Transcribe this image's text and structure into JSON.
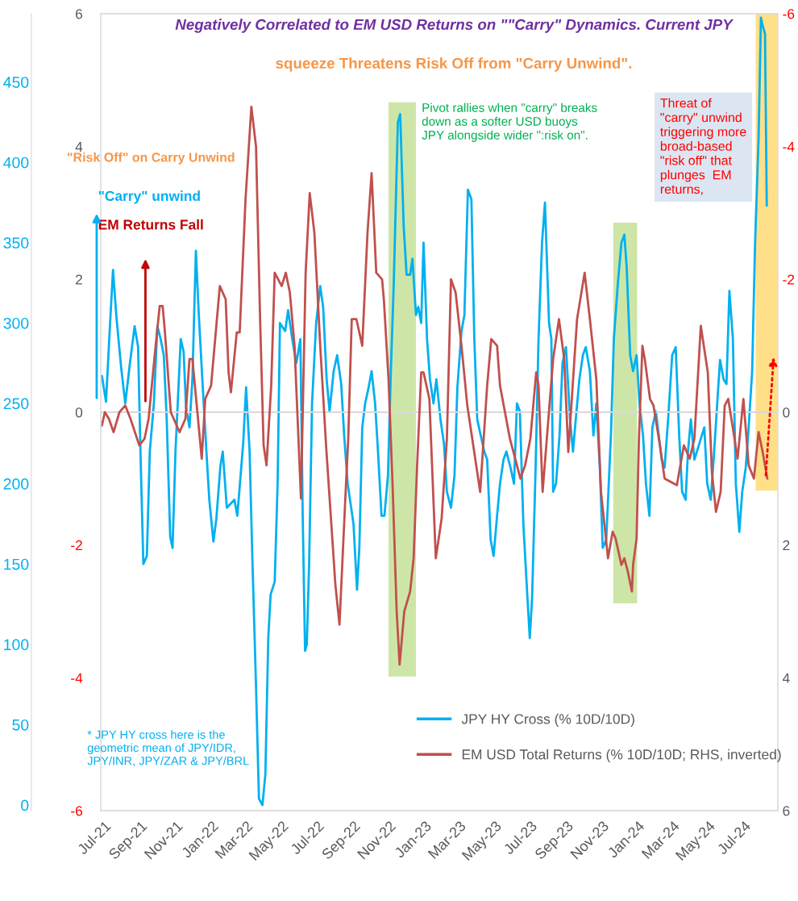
{
  "chart_data": {
    "type": "line",
    "title": "Negatively Correlated to EM USD Returns on \"\"Carry\" Dynamics. Current JPY",
    "subtitle": "squeeze Threatens Risk Off from \"Carry Unwind\".",
    "xlim": [
      "2021-06-25",
      "2024-08-28"
    ],
    "xticks": [
      {
        "value": "2021-07-01",
        "label": "Jul-21"
      },
      {
        "value": "2021-09-01",
        "label": "Sep-21"
      },
      {
        "value": "2021-11-01",
        "label": "Nov-21"
      },
      {
        "value": "2022-01-01",
        "label": "Jan-22"
      },
      {
        "value": "2022-03-01",
        "label": "Mar-22"
      },
      {
        "value": "2022-05-01",
        "label": "May-22"
      },
      {
        "value": "2022-07-01",
        "label": "Jul-22"
      },
      {
        "value": "2022-09-01",
        "label": "Sep-22"
      },
      {
        "value": "2022-11-01",
        "label": "Nov-22"
      },
      {
        "value": "2023-01-01",
        "label": "Jan-23"
      },
      {
        "value": "2023-03-01",
        "label": "Mar-23"
      },
      {
        "value": "2023-05-01",
        "label": "May-23"
      },
      {
        "value": "2023-07-01",
        "label": "Jul-23"
      },
      {
        "value": "2023-09-01",
        "label": "Sep-23"
      },
      {
        "value": "2023-11-01",
        "label": "Nov-23"
      },
      {
        "value": "2024-01-01",
        "label": "Jan-24"
      },
      {
        "value": "2024-03-01",
        "label": "Mar-24"
      },
      {
        "value": "2024-05-01",
        "label": "May-24"
      },
      {
        "value": "2024-07-01",
        "label": "Jul-24"
      }
    ],
    "ylim": [
      -3.5,
      492.5
    ],
    "yticks": [
      0,
      50,
      100,
      150,
      200,
      250,
      300,
      350,
      400,
      450
    ],
    "y2lim": [
      6,
      -6
    ],
    "y2ticks": [
      -6,
      -4,
      -2,
      0,
      2,
      4,
      6
    ],
    "y3lim": [
      -6,
      6
    ],
    "y3ticks": [
      -6,
      -4,
      -2,
      0,
      2,
      4,
      6
    ],
    "grid": false,
    "legend": "bottom right",
    "ref_lines": [
      {
        "axis": "y2",
        "value": 0,
        "color": "#d9d9d9"
      }
    ],
    "bands": [
      {
        "axis": "x",
        "from": "2022-10-31",
        "to": "2022-12-17",
        "color": "#a4d261"
      },
      {
        "axis": "x",
        "from": "2023-11-20",
        "to": "2023-12-31",
        "color": "#a4d261"
      },
      {
        "axis": "x",
        "from": "2024-07-21",
        "to": "2024-08-27",
        "color": "#ffc527"
      }
    ],
    "annotations": [
      "\"Risk Off\" on Carry Unwind",
      "\"Carry\" unwind",
      "EM Returns Fall",
      "Pivot rallies when \"carry\" breaks\ndown as a softer USD buoys\nJPY alongside wider \":risk on\".",
      "Threat of\n\"carry\" unwind\ntriggering more\nbroad-based\n\"risk off\" that\nplunges  EM\nreturns,",
      "* JPY HY cross here is the\ngeometric mean of JPY/IDR,\nJPY/INR, JPY/ZAR & JPY/BRL"
    ],
    "series": [
      {
        "name": "JPY HY Cross (% 10D/10D)",
        "color": "#00b0f0",
        "x": [
          "2021-06-27",
          "2021-07-04",
          "2021-07-11",
          "2021-07-16",
          "2021-07-22",
          "2021-07-30",
          "2021-08-06",
          "2021-08-14",
          "2021-08-22",
          "2021-08-28",
          "2021-09-01",
          "2021-09-06",
          "2021-09-12",
          "2021-09-17",
          "2021-09-24",
          "2021-09-30",
          "2021-10-05",
          "2021-10-11",
          "2021-10-16",
          "2021-10-22",
          "2021-10-26",
          "2021-10-31",
          "2021-11-09",
          "2021-11-14",
          "2021-11-18",
          "2021-11-24",
          "2021-11-29",
          "2021-12-05",
          "2021-12-10",
          "2021-12-16",
          "2021-12-23",
          "2021-12-28",
          "2022-01-04",
          "2022-01-09",
          "2022-01-16",
          "2022-01-20",
          "2022-01-27",
          "2022-02-09",
          "2022-02-14",
          "2022-02-24",
          "2022-03-01",
          "2022-03-07",
          "2022-03-12",
          "2022-03-18",
          "2022-03-23",
          "2022-03-29",
          "2022-04-03",
          "2022-04-08",
          "2022-04-12",
          "2022-04-19",
          "2022-04-24",
          "2022-04-28",
          "2022-05-07",
          "2022-05-12",
          "2022-05-19",
          "2022-05-26",
          "2022-06-02",
          "2022-06-06",
          "2022-06-10",
          "2022-06-13",
          "2022-06-17",
          "2022-06-22",
          "2022-06-29",
          "2022-07-06",
          "2022-07-11",
          "2022-07-17",
          "2022-07-22",
          "2022-07-29",
          "2022-08-04",
          "2022-08-11",
          "2022-08-16",
          "2022-08-22",
          "2022-09-01",
          "2022-09-07",
          "2022-09-11",
          "2022-09-16",
          "2022-09-21",
          "2022-09-27",
          "2022-10-02",
          "2022-10-08",
          "2022-10-13",
          "2022-10-19",
          "2022-10-24",
          "2022-10-30",
          "2022-11-04",
          "2022-11-09",
          "2022-11-16",
          "2022-11-20",
          "2022-11-26",
          "2022-12-01",
          "2022-12-07",
          "2022-12-11",
          "2022-12-17",
          "2022-12-21",
          "2022-12-26",
          "2022-12-30",
          "2023-01-05",
          "2023-01-10",
          "2023-01-16",
          "2023-01-21",
          "2023-01-28",
          "2023-02-03",
          "2023-02-08",
          "2023-02-15",
          "2023-02-21",
          "2023-02-26",
          "2023-03-05",
          "2023-03-10",
          "2023-03-16",
          "2023-03-22",
          "2023-03-27",
          "2023-04-01",
          "2023-04-13",
          "2023-04-18",
          "2023-04-24",
          "2023-04-29",
          "2023-05-05",
          "2023-05-10",
          "2023-05-16",
          "2023-05-21",
          "2023-05-28",
          "2023-06-03",
          "2023-06-08",
          "2023-06-13",
          "2023-06-19",
          "2023-06-26",
          "2023-06-30",
          "2023-07-04",
          "2023-07-10",
          "2023-07-15",
          "2023-07-21",
          "2023-07-26",
          "2023-08-02",
          "2023-08-06",
          "2023-08-09",
          "2023-08-14",
          "2023-08-20",
          "2023-08-25",
          "2023-08-31",
          "2023-09-07",
          "2023-09-12",
          "2023-09-18",
          "2023-09-23",
          "2023-09-29",
          "2023-10-04",
          "2023-10-11",
          "2023-10-17",
          "2023-10-22",
          "2023-10-28",
          "2023-11-02",
          "2023-11-08",
          "2023-11-16",
          "2023-11-21",
          "2023-11-28",
          "2023-12-04",
          "2023-12-09",
          "2023-12-13",
          "2023-12-19",
          "2023-12-24",
          "2023-12-30",
          "2024-01-04",
          "2024-01-10",
          "2024-01-15",
          "2024-01-21",
          "2024-01-26",
          "2024-02-01",
          "2024-02-11",
          "2024-02-16",
          "2024-02-22",
          "2024-02-29",
          "2024-03-06",
          "2024-03-12",
          "2024-03-17",
          "2024-03-23",
          "2024-03-27",
          "2024-04-01",
          "2024-04-07",
          "2024-04-13",
          "2024-04-24",
          "2024-04-29",
          "2024-05-05",
          "2024-05-10",
          "2024-05-17",
          "2024-05-21",
          "2024-05-27",
          "2024-06-01",
          "2024-06-06",
          "2024-06-12",
          "2024-06-17",
          "2024-06-23",
          "2024-06-28",
          "2024-07-04",
          "2024-07-09",
          "2024-07-15",
          "2024-07-20",
          "2024-07-26",
          "2024-07-30",
          "2024-08-02",
          "2024-08-06",
          "2024-08-09"
        ],
        "values": [
          267,
          251,
          300,
          333,
          303,
          272,
          250,
          275,
          298,
          285,
          220,
          150,
          155,
          220,
          250,
          298,
          291,
          280,
          240,
          167,
          160,
          220,
          290,
          282,
          248,
          235,
          265,
          345,
          305,
          265,
          220,
          190,
          164,
          178,
          211,
          220,
          185,
          190,
          180,
          225,
          260,
          220,
          150,
          74,
          4,
          0,
          19,
          104,
          131,
          139,
          200,
          300,
          295,
          308,
          290,
          275,
          290,
          180,
          96,
          100,
          150,
          250,
          300,
          323,
          310,
          265,
          245,
          270,
          280,
          262,
          230,
          200,
          175,
          134,
          160,
          235,
          250,
          260,
          270,
          250,
          220,
          180,
          180,
          205,
          270,
          325,
          425,
          430,
          360,
          330,
          330,
          340,
          305,
          310,
          300,
          350,
          290,
          265,
          250,
          265,
          240,
          225,
          195,
          185,
          205,
          260,
          295,
          305,
          383,
          377,
          290,
          240,
          220,
          215,
          165,
          155,
          180,
          200,
          215,
          220,
          210,
          200,
          250,
          245,
          175,
          129,
          104,
          129,
          210,
          290,
          350,
          375,
          300,
          290,
          195,
          200,
          230,
          275,
          285,
          240,
          220,
          245,
          265,
          280,
          285,
          270,
          230,
          250,
          210,
          160,
          165,
          230,
          290,
          325,
          350,
          355,
          335,
          280,
          270,
          280,
          250,
          230,
          200,
          180,
          235,
          245,
          215,
          210,
          240,
          280,
          285,
          230,
          195,
          190,
          220,
          240,
          215,
          222,
          235,
          200,
          190,
          215,
          255,
          277,
          265,
          262,
          320,
          290,
          200,
          170,
          195,
          210,
          235,
          270,
          350,
          415,
          490,
          485,
          480,
          373
        ]
      },
      {
        "name": "EM USD Total Returns (% 10D/10D; RHS, inverted)",
        "color": "#c0504d",
        "axis": "y2",
        "x": [
          "2021-06-27",
          "2021-07-02",
          "2021-07-09",
          "2021-07-17",
          "2021-07-27",
          "2021-08-06",
          "2021-08-15",
          "2021-08-30",
          "2021-09-08",
          "2021-09-15",
          "2021-09-27",
          "2021-10-04",
          "2021-10-09",
          "2021-10-13",
          "2021-10-23",
          "2021-11-07",
          "2021-11-17",
          "2021-11-24",
          "2021-11-29",
          "2021-12-15",
          "2021-12-21",
          "2021-12-31",
          "2022-01-15",
          "2022-01-25",
          "2022-01-30",
          "2022-02-03",
          "2022-02-13",
          "2022-02-18",
          "2022-02-28",
          "2022-03-10",
          "2022-03-18",
          "2022-03-25",
          "2022-03-31",
          "2022-04-05",
          "2022-04-13",
          "2022-04-19",
          "2022-05-01",
          "2022-05-08",
          "2022-05-15",
          "2022-05-23",
          "2022-06-03",
          "2022-06-11",
          "2022-06-18",
          "2022-06-26",
          "2022-07-06",
          "2022-07-16",
          "2022-08-01",
          "2022-08-08",
          "2022-08-18",
          "2022-08-23",
          "2022-08-29",
          "2022-09-06",
          "2022-09-16",
          "2022-09-25",
          "2022-10-02",
          "2022-10-10",
          "2022-10-20",
          "2022-10-23",
          "2022-10-31",
          "2022-11-07",
          "2022-11-14",
          "2022-11-19",
          "2022-11-27",
          "2022-12-07",
          "2022-12-13",
          "2022-12-19",
          "2022-12-26",
          "2022-12-30",
          "2023-01-09",
          "2023-01-20",
          "2023-01-30",
          "2023-02-08",
          "2023-02-15",
          "2023-02-23",
          "2023-03-05",
          "2023-03-15",
          "2023-04-06",
          "2023-04-18",
          "2023-04-25",
          "2023-05-05",
          "2023-05-10",
          "2023-05-27",
          "2023-06-14",
          "2023-06-22",
          "2023-07-01",
          "2023-07-11",
          "2023-07-15",
          "2023-07-22",
          "2023-08-09",
          "2023-08-19",
          "2023-08-28",
          "2023-09-04",
          "2023-09-19",
          "2023-10-02",
          "2023-10-11",
          "2023-10-22",
          "2023-10-30",
          "2023-11-11",
          "2023-11-19",
          "2023-11-24",
          "2023-12-04",
          "2023-12-09",
          "2023-12-15",
          "2023-12-22",
          "2023-12-24",
          "2023-12-30",
          "2024-01-03",
          "2024-01-09",
          "2024-01-13",
          "2024-01-22",
          "2024-01-28",
          "2024-02-08",
          "2024-02-16",
          "2024-03-08",
          "2024-03-20",
          "2024-03-30",
          "2024-04-07",
          "2024-04-18",
          "2024-04-30",
          "2024-05-07",
          "2024-05-14",
          "2024-05-22",
          "2024-05-29",
          "2024-06-04",
          "2024-06-13",
          "2024-06-20",
          "2024-06-30",
          "2024-07-09",
          "2024-07-18",
          "2024-07-26",
          "2024-08-02",
          "2024-08-10"
        ],
        "values": [
          0.2,
          0.0,
          0.1,
          0.3,
          0.0,
          -0.1,
          0.1,
          0.5,
          0.4,
          0.1,
          -1.0,
          -1.6,
          -1.6,
          -1.2,
          0.0,
          0.3,
          0.1,
          -0.8,
          -0.8,
          0.7,
          -0.2,
          -0.4,
          -1.9,
          -1.7,
          -0.6,
          -0.3,
          -1.2,
          -1.2,
          -3.2,
          -4.6,
          -4.0,
          -1.4,
          0.5,
          0.8,
          -0.4,
          -2.1,
          -1.9,
          -2.1,
          -1.8,
          -1.0,
          1.3,
          -2.1,
          -3.3,
          -2.7,
          -1.0,
          0.5,
          2.6,
          3.2,
          1.3,
          0.4,
          -1.4,
          -1.4,
          -1.0,
          -2.7,
          -3.6,
          -2.1,
          -2.0,
          -1.7,
          -0.5,
          1.1,
          3.0,
          3.8,
          3.0,
          2.7,
          2.2,
          0.8,
          -0.6,
          -0.6,
          -0.2,
          2.2,
          1.6,
          0.4,
          -2.0,
          -1.8,
          -1.0,
          -0.1,
          1.2,
          -0.4,
          -1.1,
          -1.0,
          -0.4,
          0.4,
          1.0,
          0.8,
          0.4,
          -0.6,
          -0.4,
          1.2,
          -0.8,
          -1.4,
          -0.8,
          0.6,
          -1.4,
          -2.1,
          -1.4,
          -0.5,
          1.2,
          2.2,
          1.8,
          1.9,
          2.3,
          2.2,
          2.4,
          2.7,
          2.3,
          1.9,
          0.4,
          -1.0,
          -0.8,
          -0.2,
          -0.1,
          0.5,
          1.0,
          1.1,
          0.5,
          0.7,
          0.4,
          -1.3,
          -0.6,
          0.9,
          1.5,
          1.2,
          -0.1,
          -0.2,
          0.3,
          0.7,
          -0.2,
          0.8,
          1.0,
          0.3,
          0.6,
          1.0
        ]
      }
    ]
  }
}
